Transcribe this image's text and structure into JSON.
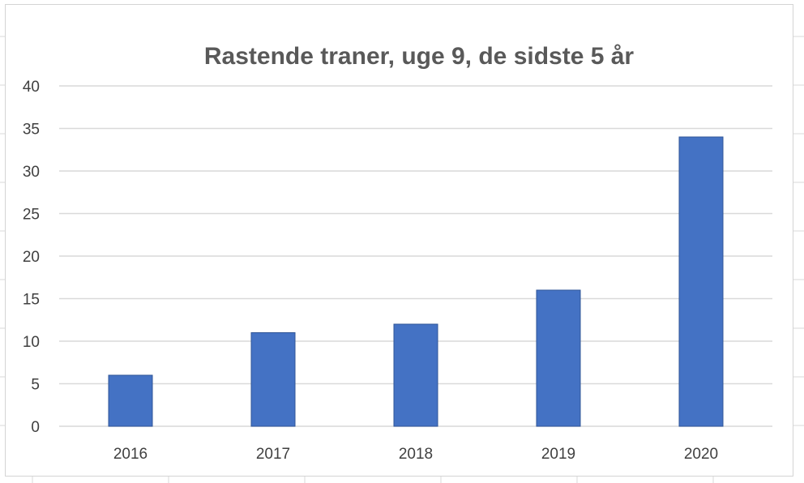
{
  "chart_data": {
    "type": "bar",
    "title": "Rastende traner, uge 9, de sidste 5 år",
    "xlabel": "",
    "ylabel": "",
    "categories": [
      "2016",
      "2017",
      "2018",
      "2019",
      "2020"
    ],
    "values": [
      6,
      11,
      12,
      16,
      34
    ],
    "ylim": [
      0,
      40
    ],
    "yticks": [
      "0",
      "5",
      "10",
      "15",
      "20",
      "25",
      "30",
      "35",
      "40"
    ],
    "grid": true,
    "legend": "none",
    "bar_color": "#4472c4",
    "bar_edge_color": "#2f5597",
    "grid_color": "#d9d9d9"
  }
}
